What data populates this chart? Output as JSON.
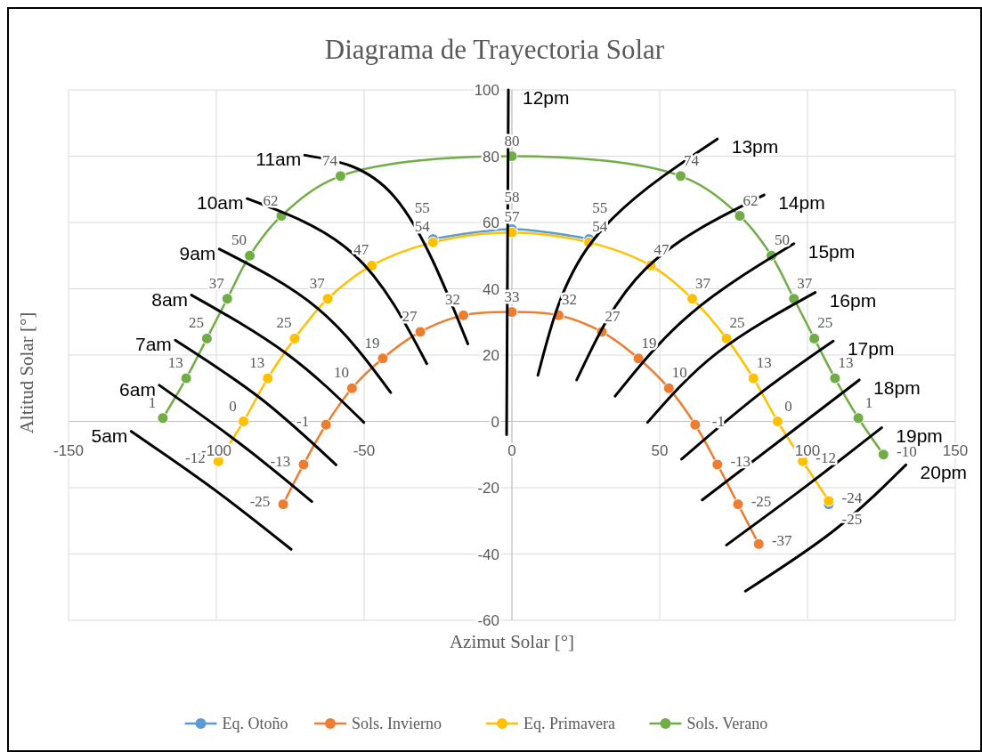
{
  "chart_data": {
    "type": "line",
    "title": "Diagrama de Trayectoria Solar",
    "xlabel": "Azimut Solar [°]",
    "ylabel": "Altitud Solar [°]",
    "xlim": [
      -150,
      150
    ],
    "xticks": [
      -150,
      -100,
      -50,
      0,
      50,
      100,
      150
    ],
    "ylim": [
      -60,
      100
    ],
    "yticks": [
      -60,
      -40,
      -20,
      0,
      20,
      40,
      60,
      80,
      100
    ],
    "grid": true,
    "legend": "bottom",
    "marker": "circle",
    "series": [
      {
        "name": "Eq. Otoño",
        "color": "#5b9bd5",
        "x": [
          null,
          null,
          null,
          null,
          null,
          null,
          -26.7,
          0,
          26.1,
          null,
          null,
          null,
          null,
          null,
          null,
          107.2
        ],
        "values": [
          null,
          null,
          null,
          null,
          null,
          null,
          55,
          58,
          55,
          null,
          null,
          null,
          null,
          null,
          null,
          -25
        ],
        "value_labels": [
          null,
          null,
          null,
          null,
          null,
          null,
          "55",
          "58",
          "55",
          null,
          null,
          null,
          null,
          null,
          null,
          "-25"
        ]
      },
      {
        "name": "Sols. Invierno",
        "color": "#ed7d31",
        "x": [
          -77.4,
          -70.5,
          -62.9,
          -54.1,
          -43.7,
          -31,
          -16.4,
          0,
          15.8,
          30.4,
          42.8,
          53.1,
          62,
          69.5,
          76.5,
          83.5
        ],
        "values": [
          -25,
          -13,
          -1,
          10,
          19,
          27,
          32,
          33,
          32,
          27,
          19,
          10,
          -1,
          -13,
          -25,
          -37
        ],
        "value_labels": [
          "-25",
          "-13",
          "-1",
          "10",
          "19",
          "27",
          "32",
          "33",
          "32",
          "27",
          "19",
          "10",
          "-1",
          "-13",
          "-25",
          "-37"
        ]
      },
      {
        "name": "Eq. Primavera",
        "color": "#ffc000",
        "x": [
          -99.3,
          -90.8,
          -82.6,
          -73.5,
          -62.3,
          -47.4,
          -26.7,
          0,
          26.1,
          47,
          61,
          72.6,
          81.7,
          89.9,
          98.4,
          107.2
        ],
        "values": [
          -12,
          0,
          13,
          25,
          37,
          47,
          54,
          57,
          54,
          47,
          37,
          25,
          13,
          0,
          -12,
          -24
        ],
        "value_labels": [
          "-12",
          "0",
          "13",
          "25",
          "37",
          "47",
          "54",
          "57",
          "54",
          "47",
          "37",
          "25",
          "13",
          "0",
          "-12",
          "-24"
        ]
      },
      {
        "name": "Sols. Verano",
        "color": "#70ad47",
        "x": [
          -118.1,
          -110.2,
          -103.2,
          -96.3,
          -88.7,
          -78,
          -58,
          0,
          57.1,
          77.1,
          87.8,
          95.4,
          102.3,
          109.3,
          117.2,
          125.7
        ],
        "values": [
          1,
          13,
          25,
          37,
          50,
          62,
          74,
          80,
          74,
          62,
          50,
          37,
          25,
          13,
          1,
          -10
        ],
        "value_labels": [
          "1",
          "13",
          "25",
          "37",
          "50",
          "62",
          "74",
          "80",
          "74",
          "62",
          "50",
          "37",
          "25",
          "13",
          "1",
          "-10"
        ]
      },
      {
        "name": "5am",
        "color": "#000000",
        "marker": "none",
        "x": [
          -128.8,
          -100.5,
          -74.7
        ],
        "values": [
          -3,
          -20.7,
          -38.6
        ]
      },
      {
        "name": "6am",
        "color": "#000000",
        "marker": "none",
        "x": [
          -119.3,
          -91.4,
          -67.7
        ],
        "values": [
          10.9,
          -7.1,
          -24.2
        ]
      },
      {
        "name": "7am",
        "color": "#000000",
        "marker": "none",
        "x": [
          -113.9,
          -85.3,
          -59.5
        ],
        "values": [
          24.5,
          7.1,
          -13.1
        ]
      },
      {
        "name": "8am",
        "color": "#000000",
        "marker": "none",
        "x": [
          -108.4,
          -76.2,
          -50.1
        ],
        "values": [
          38.1,
          20.4,
          -0.3
        ]
      },
      {
        "name": "9am",
        "color": "#000000",
        "marker": "none",
        "x": [
          -99,
          -65.6,
          -41
        ],
        "values": [
          52,
          34,
          8.7
        ]
      },
      {
        "name": "10am",
        "color": "#000000",
        "marker": "none",
        "x": [
          -89.6,
          -53.4,
          -28.8
        ],
        "values": [
          67.2,
          50.3,
          17.4
        ]
      },
      {
        "name": "11am",
        "color": "#000000",
        "marker": "none",
        "x": [
          -70.1,
          -39.8,
          -14.9
        ],
        "values": [
          80.3,
          67.8,
          23.4
        ]
      },
      {
        "name": "12pm",
        "color": "#000000",
        "marker": "none",
        "x": [
          -1.2,
          -1.8
        ],
        "values": [
          100,
          -4
        ]
      },
      {
        "name": "13pm",
        "color": "#000000",
        "marker": "none",
        "x": [
          8.8,
          27,
          69.5
        ],
        "values": [
          13.9,
          54.1,
          85.2
        ]
      },
      {
        "name": "14pm",
        "color": "#000000",
        "marker": "none",
        "x": [
          21.9,
          45.2,
          85.3
        ],
        "values": [
          12.5,
          46,
          68.3
        ]
      },
      {
        "name": "15pm",
        "color": "#000000",
        "marker": "none",
        "x": [
          34.9,
          60.4,
          95.4
        ],
        "values": [
          7.6,
          32.4,
          53.6
        ]
      },
      {
        "name": "16pm",
        "color": "#000000",
        "marker": "none",
        "x": [
          45.9,
          69.5,
          102.6
        ],
        "values": [
          -0.3,
          20.7,
          38.9
        ]
      },
      {
        "name": "17pm",
        "color": "#000000",
        "marker": "none",
        "x": [
          57.4,
          83.2,
          108.7
        ],
        "values": [
          -11.4,
          7.9,
          24.2
        ]
      },
      {
        "name": "18pm",
        "color": "#000000",
        "marker": "none",
        "x": [
          64.4,
          90.8,
          117.5
        ],
        "values": [
          -23.7,
          -5.7,
          12.5
        ]
      },
      {
        "name": "19pm",
        "color": "#000000",
        "marker": "none",
        "x": [
          72.6,
          99.9,
          125.1
        ],
        "values": [
          -37.3,
          -19.3,
          -1.9
        ]
      },
      {
        "name": "20pm",
        "color": "#000000",
        "marker": "none",
        "x": [
          79,
          109,
          133.3
        ],
        "values": [
          -51.2,
          -32.9,
          -13.1
        ]
      }
    ]
  }
}
